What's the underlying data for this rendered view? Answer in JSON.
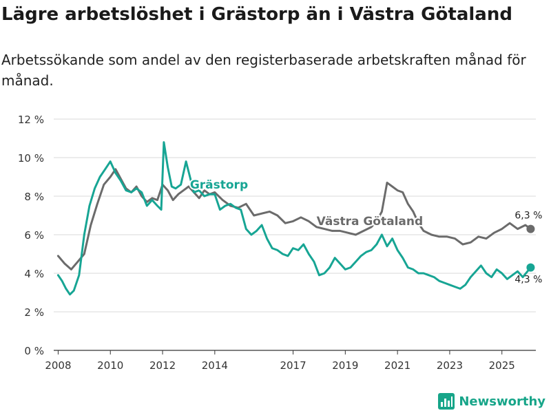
{
  "header": {
    "title": "Lägre arbetslöshet i Grästorp än i Västra Götaland",
    "subtitle": "Arbetssökande som andel av den registerbaserade arbetskraften månad för månad."
  },
  "footer": {
    "brand": "Newsworthy",
    "brand_color": "#17a589"
  },
  "chart_data": {
    "type": "line",
    "title": "Lägre arbetslöshet i Grästorp än i Västra Götaland",
    "subtitle": "Arbetssökande som andel av den registerbaserade arbetskraften månad för månad.",
    "xlabel": "",
    "ylabel": "",
    "ylim": [
      0,
      12
    ],
    "yticks": [
      0,
      2,
      4,
      6,
      8,
      10,
      12
    ],
    "ytick_labels": [
      "0 %",
      "2 %",
      "4 %",
      "6 %",
      "8 %",
      "10 %",
      "12 %"
    ],
    "xticks": [
      2008,
      2010,
      2012,
      2014,
      2017,
      2019,
      2021,
      2023,
      2025
    ],
    "xtick_labels": [
      "2008",
      "2010",
      "2012",
      "2014",
      "2017",
      "2019",
      "2021",
      "2023",
      "2025"
    ],
    "xlim": [
      2007.83,
      2026.3
    ],
    "grid": "horizontal",
    "series": [
      {
        "name": "Västra Götaland",
        "color": "#6b6b6b",
        "end_label": "6,3 %",
        "x": [
          2008.0,
          2008.25,
          2008.5,
          2008.75,
          2009.0,
          2009.25,
          2009.5,
          2009.75,
          2010.0,
          2010.2,
          2010.4,
          2010.6,
          2010.8,
          2011.0,
          2011.2,
          2011.4,
          2011.6,
          2011.8,
          2012.0,
          2012.2,
          2012.4,
          2012.6,
          2012.8,
          2013.0,
          2013.2,
          2013.4,
          2013.6,
          2013.8,
          2014.0,
          2014.3,
          2014.6,
          2014.9,
          2015.2,
          2015.5,
          2015.8,
          2016.1,
          2016.4,
          2016.7,
          2017.0,
          2017.3,
          2017.6,
          2017.9,
          2018.2,
          2018.5,
          2018.8,
          2019.1,
          2019.4,
          2019.7,
          2020.0,
          2020.2,
          2020.4,
          2020.6,
          2020.8,
          2021.0,
          2021.2,
          2021.4,
          2021.6,
          2021.8,
          2022.0,
          2022.3,
          2022.6,
          2022.9,
          2023.2,
          2023.5,
          2023.8,
          2024.1,
          2024.4,
          2024.7,
          2025.0,
          2025.3,
          2025.6,
          2025.9,
          2026.1
        ],
        "values": [
          4.9,
          4.5,
          4.2,
          4.6,
          5.0,
          6.5,
          7.6,
          8.6,
          9.0,
          9.4,
          8.9,
          8.4,
          8.2,
          8.5,
          8.0,
          7.7,
          7.9,
          7.8,
          8.6,
          8.3,
          7.8,
          8.1,
          8.3,
          8.5,
          8.2,
          7.9,
          8.3,
          8.1,
          8.2,
          7.8,
          7.5,
          7.4,
          7.6,
          7.0,
          7.1,
          7.2,
          7.0,
          6.6,
          6.7,
          6.9,
          6.7,
          6.4,
          6.3,
          6.2,
          6.2,
          6.1,
          6.0,
          6.2,
          6.4,
          6.7,
          7.2,
          8.7,
          8.5,
          8.3,
          8.2,
          7.6,
          7.2,
          6.6,
          6.2,
          6.0,
          5.9,
          5.9,
          5.8,
          5.5,
          5.6,
          5.9,
          5.8,
          6.1,
          6.3,
          6.6,
          6.3,
          6.5,
          6.3
        ]
      },
      {
        "name": "Grästorp",
        "color": "#17a594",
        "end_label": "4,3 %",
        "x": [
          2008.0,
          2008.15,
          2008.3,
          2008.45,
          2008.6,
          2008.8,
          2009.0,
          2009.2,
          2009.4,
          2009.6,
          2009.8,
          2010.0,
          2010.2,
          2010.4,
          2010.6,
          2010.8,
          2011.0,
          2011.2,
          2011.4,
          2011.6,
          2011.8,
          2011.95,
          2012.05,
          2012.2,
          2012.35,
          2012.5,
          2012.7,
          2012.9,
          2013.05,
          2013.2,
          2013.4,
          2013.6,
          2013.8,
          2014.0,
          2014.2,
          2014.4,
          2014.6,
          2014.8,
          2015.0,
          2015.2,
          2015.4,
          2015.6,
          2015.8,
          2016.0,
          2016.2,
          2016.4,
          2016.6,
          2016.8,
          2017.0,
          2017.2,
          2017.4,
          2017.6,
          2017.8,
          2018.0,
          2018.2,
          2018.4,
          2018.6,
          2018.8,
          2019.0,
          2019.2,
          2019.4,
          2019.6,
          2019.8,
          2020.0,
          2020.2,
          2020.4,
          2020.6,
          2020.8,
          2021.0,
          2021.2,
          2021.4,
          2021.6,
          2021.8,
          2022.0,
          2022.2,
          2022.4,
          2022.6,
          2022.8,
          2023.0,
          2023.2,
          2023.4,
          2023.6,
          2023.8,
          2024.0,
          2024.2,
          2024.4,
          2024.6,
          2024.8,
          2025.0,
          2025.2,
          2025.4,
          2025.6,
          2025.8,
          2026.1
        ],
        "values": [
          3.9,
          3.6,
          3.2,
          2.9,
          3.1,
          3.9,
          6.0,
          7.5,
          8.4,
          9.0,
          9.4,
          9.8,
          9.2,
          8.8,
          8.3,
          8.2,
          8.4,
          8.2,
          7.5,
          7.8,
          7.5,
          7.3,
          10.8,
          9.5,
          8.5,
          8.4,
          8.6,
          9.8,
          9.0,
          8.2,
          8.3,
          8.0,
          8.1,
          8.1,
          7.3,
          7.5,
          7.6,
          7.4,
          7.3,
          6.3,
          6.0,
          6.2,
          6.5,
          5.8,
          5.3,
          5.2,
          5.0,
          4.9,
          5.3,
          5.2,
          5.5,
          5.0,
          4.6,
          3.9,
          4.0,
          4.3,
          4.8,
          4.5,
          4.2,
          4.3,
          4.6,
          4.9,
          5.1,
          5.2,
          5.5,
          6.0,
          5.4,
          5.8,
          5.2,
          4.8,
          4.3,
          4.2,
          4.0,
          4.0,
          3.9,
          3.8,
          3.6,
          3.5,
          3.4,
          3.3,
          3.2,
          3.4,
          3.8,
          4.1,
          4.4,
          4.0,
          3.8,
          4.2,
          4.0,
          3.7,
          3.9,
          4.1,
          3.8,
          4.3
        ]
      }
    ],
    "annotations": [
      {
        "text": "Grästorp",
        "series": "Grästorp"
      },
      {
        "text": "Västra Götaland",
        "series": "Västra Götaland"
      }
    ]
  }
}
